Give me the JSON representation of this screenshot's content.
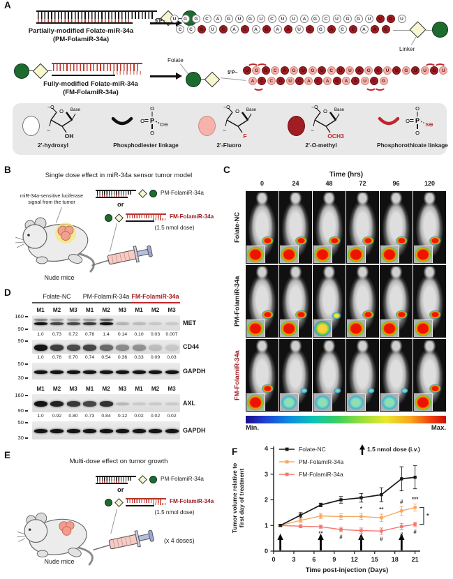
{
  "figure": {
    "panel_labels": {
      "a": "A",
      "b": "B",
      "c": "C",
      "d": "D",
      "e": "E",
      "f": "F"
    }
  },
  "panel_a": {
    "pm_title": "Partially-modified Folate-miR-34a",
    "pm_subtitle": "(PM-FolamiR-34a)",
    "fm_title": "Fully-modified Folate-miR-34a",
    "fm_subtitle": "(FM-FolamiR-34a)",
    "five_prime": "5'P–",
    "linker_label": "Linker",
    "folate_label": "Folate",
    "pm_duplex": {
      "top_seq": "UGGCAGUGUCUUAGCUGGUUGU",
      "top_mods": "wwwwwwwwwwwwwwwwwwwmmw",
      "bottom_seq": "CCGUCACAGAAUCGACCAAC",
      "bottom_mods": "wwmwmwmwmwmwmwmwmwmm"
    },
    "fm_duplex": {
      "top_seq": "UGGCAGUGUCUUAGCUGGUUGU",
      "top_mods": "mfmfmfmfmfmfmfmfmfmfmf",
      "top_arcs": [
        0,
        1,
        19,
        20
      ],
      "bottom_seq": "ACCGUCACAGAAUCG",
      "bottom_mods": "fmfmfmfmfmfmfmf",
      "bottom_arcs": [
        0,
        12,
        13
      ]
    },
    "legend_items": [
      {
        "type": "nucleotide",
        "label": "2'-hydroxyl",
        "chem": "OH",
        "chem_color": "#1a1a1a",
        "base_label": "Base",
        "ring_o": "O"
      },
      {
        "type": "linkage",
        "label": "Phosphodiester linkage",
        "p": "P",
        "o_top": "O",
        "o_left": "O",
        "o_bottom": "O",
        "o_right": "O⊖",
        "right_color": "#1a1a1a"
      },
      {
        "type": "nucleotide",
        "label": "2'-Fluoro",
        "chem": "F",
        "chem_color": "#C0262C",
        "base_label": "Base",
        "ring_o": "O"
      },
      {
        "type": "nucleotide",
        "label": "2'-O-methyl",
        "chem": "OCH3",
        "chem_color": "#C0262C",
        "base_label": "Base",
        "ring_o": "O"
      },
      {
        "type": "linkage",
        "label": "Phosphorothioate linkage",
        "p": "P",
        "o_top": "O",
        "o_left": "O",
        "o_bottom": "O",
        "o_right": "S⊖",
        "right_color": "#C0262C"
      }
    ],
    "colors": {
      "fluoro": "#F5B3AC",
      "omethyl": "#A01D23",
      "folate_green": "#1E6B30",
      "linker_yellow": "#F6F6CF",
      "ps_red": "#C0262C"
    }
  },
  "panel_b": {
    "title": "Single dose effect in miR-34a sensor tumor model",
    "callout_line1": "miR-34a-sensitive luciferase",
    "callout_line2": "signal from the tumor",
    "pm_label": "PM-FolamiR-34a",
    "or_label": "or",
    "fm_label": "FM-FolamiR-34a",
    "dose_label": "(1.5 nmol dose)",
    "mice_label": "Nude mice"
  },
  "panel_c": {
    "title": "Time (hrs)",
    "timepoints": [
      "0",
      "24",
      "48",
      "72",
      "96",
      "120"
    ],
    "rows": [
      {
        "label": "Folate-NC",
        "label_color": "#1a1a1a",
        "signals": [
          "high",
          "high",
          "high",
          "high",
          "high",
          "high"
        ]
      },
      {
        "label": "PM-FolamiR-34a",
        "label_color": "#1a1a1a",
        "signals": [
          "high",
          "high",
          "med",
          "high",
          "high",
          "high"
        ]
      },
      {
        "label": "FM-FolamiR-34a",
        "label_color": "#A01D23",
        "signals": [
          "high",
          "low",
          "low",
          "low",
          "low",
          "high"
        ]
      }
    ],
    "scale_min": "Min.",
    "scale_max": "Max."
  },
  "panel_d": {
    "groups": [
      {
        "label": "Folate-NC",
        "color": "#1a1a1a",
        "underline": "#555555"
      },
      {
        "label": "PM-FolamiR-34a",
        "color": "#1a1a1a",
        "underline": "#555555"
      },
      {
        "label": "FM-FolamiR-34a",
        "color": "#A01D23",
        "underline": "#C0262C"
      }
    ],
    "lane_labels": [
      "M1",
      "M2",
      "M3",
      "M1",
      "M2",
      "M3",
      "M1",
      "M2",
      "M3"
    ],
    "blot_sets": [
      {
        "blots": [
          {
            "protein": "MET",
            "mw_top": "160",
            "mw_bottom": "90",
            "band_h": 4,
            "doublet": true,
            "values": [
              "1.0",
              "0.73",
              "0.72",
              "0.78",
              "1.4",
              "0.14",
              "0.10",
              "0.03",
              "0.007"
            ]
          },
          {
            "protein": "CD44",
            "mw_top": "90",
            "mw_bottom": "",
            "band_h": 9,
            "values": [
              "1.0",
              "0.78",
              "0.70",
              "0.74",
              "0.54",
              "0.36",
              "0.33",
              "0.09",
              "0.03"
            ]
          },
          {
            "protein": "GAPDH",
            "mw_top": "50",
            "mw_bottom": "30",
            "band_h": 5,
            "values": null
          }
        ]
      },
      {
        "blots": [
          {
            "protein": "AXL",
            "mw_top": "160",
            "mw_bottom": "90",
            "band_h": 8,
            "values": [
              "1.0",
              "0.92",
              "0.80",
              "0.73",
              "0.84",
              "0.12",
              "0.02",
              "0.02",
              "0.02"
            ]
          },
          {
            "protein": "GAPDH",
            "mw_top": "50",
            "mw_bottom": "30",
            "band_h": 6,
            "values": null
          }
        ]
      }
    ]
  },
  "panel_e": {
    "title": "Multi-dose effect on tumor growth",
    "pm_label": "PM-FolamiR-34a",
    "or_label": "or",
    "fm_label": "FM-FolamiR-34a",
    "dose_label": "(1.5 nmol dose)",
    "doses_label": "(x 4 doses)",
    "mice_label": "Nude mice"
  },
  "chart_data": {
    "type": "line",
    "x": [
      1,
      4,
      7,
      10,
      13,
      16,
      19,
      21
    ],
    "series": [
      {
        "name": "Folate-NC",
        "color": "#1a1a1a",
        "values": [
          1.0,
          1.4,
          1.8,
          2.0,
          2.08,
          2.2,
          2.82,
          2.88
        ],
        "errors": [
          0.04,
          0.1,
          0.07,
          0.13,
          0.17,
          0.27,
          0.47,
          0.45
        ]
      },
      {
        "name": "PM-FolamiR-34a",
        "color": "#F5A962",
        "values": [
          1.0,
          1.2,
          1.37,
          1.35,
          1.35,
          1.3,
          1.57,
          1.7
        ],
        "errors": [
          0.04,
          0.09,
          0.1,
          0.11,
          0.12,
          0.14,
          0.17,
          0.14
        ],
        "sig_above": [
          "",
          "",
          "",
          "",
          "*",
          "**",
          "#",
          "***"
        ]
      },
      {
        "name": "FM-FolamiR-34a",
        "color": "#F4776F",
        "values": [
          1.0,
          0.97,
          0.95,
          0.84,
          0.8,
          0.78,
          0.96,
          1.04
        ],
        "errors": [
          0.03,
          0.06,
          0.06,
          0.09,
          0.1,
          0.12,
          0.12,
          0.09
        ],
        "sig_below": [
          "",
          "",
          "**",
          "#",
          "#",
          "#",
          "#",
          "#"
        ]
      }
    ],
    "xlabel": "Time post-injection (Days)",
    "ylabel_lines": [
      "Tumor volume relative to",
      "first day of treatment"
    ],
    "xticks": [
      0,
      3,
      6,
      9,
      12,
      15,
      18,
      21
    ],
    "yticks": [
      0,
      1,
      2,
      3,
      4
    ],
    "xlim": [
      0,
      22
    ],
    "ylim": [
      0,
      4
    ],
    "grid": false,
    "legend_position": "top-left",
    "dose_annotation": "1.5 nmol dose (i.v.)",
    "dose_arrow_days": [
      1,
      7,
      13,
      19
    ],
    "bracket_label": "*"
  }
}
